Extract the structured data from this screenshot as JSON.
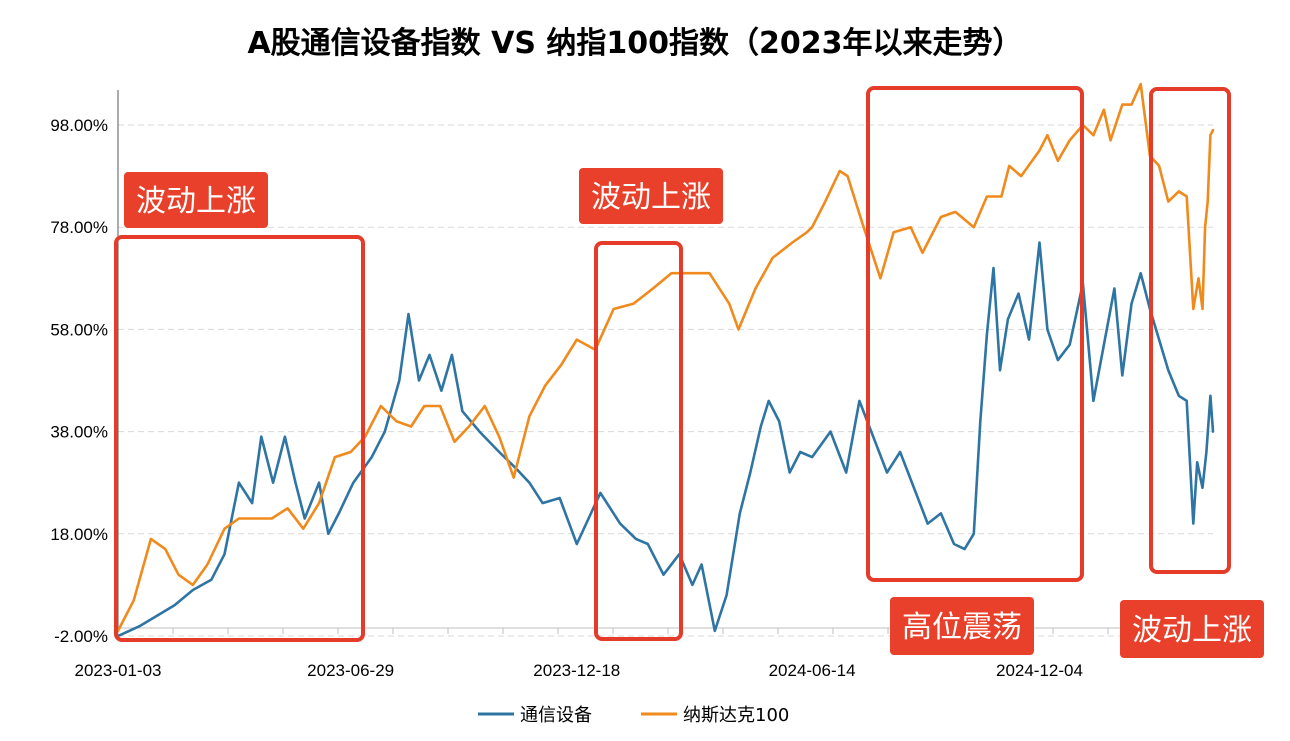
{
  "chart_data": {
    "type": "line",
    "title": "A股通信设备指数 VS 纳指100指数（2023年以来走势）",
    "x_tick_labels": [
      "2023-01-03",
      "2023-06-29",
      "2023-12-18",
      "2024-06-14",
      "2024-12-04"
    ],
    "y_tick_labels": [
      "-2.00%",
      "18.00%",
      "38.00%",
      "58.00%",
      "78.00%",
      "98.00%"
    ],
    "y_ticks": [
      -2,
      18,
      38,
      58,
      78,
      98
    ],
    "ylim": [
      -2,
      104
    ],
    "xlim": [
      "2023-01-03",
      "2025-04-15"
    ],
    "grid": "horizontal dashed",
    "legend_position": "bottom",
    "series": [
      {
        "name": "通信设备",
        "color": "#2e75a3",
        "points": [
          [
            "2023-01-03",
            -2
          ],
          [
            "2023-01-20",
            0
          ],
          [
            "2023-02-15",
            4
          ],
          [
            "2023-03-01",
            7
          ],
          [
            "2023-03-15",
            9
          ],
          [
            "2023-03-25",
            14
          ],
          [
            "2023-04-05",
            28
          ],
          [
            "2023-04-15",
            24
          ],
          [
            "2023-04-22",
            37
          ],
          [
            "2023-05-01",
            28
          ],
          [
            "2023-05-10",
            37
          ],
          [
            "2023-05-18",
            28
          ],
          [
            "2023-05-25",
            21
          ],
          [
            "2023-06-05",
            28
          ],
          [
            "2023-06-12",
            18
          ],
          [
            "2023-06-20",
            22
          ],
          [
            "2023-07-01",
            28
          ],
          [
            "2023-07-15",
            33
          ],
          [
            "2023-07-25",
            38
          ],
          [
            "2023-08-05",
            48
          ],
          [
            "2023-08-12",
            61
          ],
          [
            "2023-08-20",
            48
          ],
          [
            "2023-08-28",
            53
          ],
          [
            "2023-09-06",
            46
          ],
          [
            "2023-09-14",
            53
          ],
          [
            "2023-09-22",
            42
          ],
          [
            "2023-10-05",
            38
          ],
          [
            "2023-10-20",
            34
          ],
          [
            "2023-11-01",
            31
          ],
          [
            "2023-11-12",
            28
          ],
          [
            "2023-11-22",
            24
          ],
          [
            "2023-12-05",
            25
          ],
          [
            "2023-12-18",
            16
          ],
          [
            "2024-01-05",
            26
          ],
          [
            "2024-01-20",
            20
          ],
          [
            "2024-02-01",
            17
          ],
          [
            "2024-02-10",
            16
          ],
          [
            "2024-02-22",
            10
          ],
          [
            "2024-03-05",
            14
          ],
          [
            "2024-03-15",
            8
          ],
          [
            "2024-03-22",
            12
          ],
          [
            "2024-04-01",
            -1
          ],
          [
            "2024-04-10",
            6
          ],
          [
            "2024-04-20",
            22
          ],
          [
            "2024-04-28",
            30
          ],
          [
            "2024-05-06",
            39
          ],
          [
            "2024-05-12",
            44
          ],
          [
            "2024-05-20",
            40
          ],
          [
            "2024-05-28",
            30
          ],
          [
            "2024-06-05",
            34
          ],
          [
            "2024-06-14",
            33
          ],
          [
            "2024-06-28",
            38
          ],
          [
            "2024-07-10",
            30
          ],
          [
            "2024-07-20",
            44
          ],
          [
            "2024-08-01",
            36
          ],
          [
            "2024-08-10",
            30
          ],
          [
            "2024-08-20",
            34
          ],
          [
            "2024-09-01",
            26
          ],
          [
            "2024-09-10",
            20
          ],
          [
            "2024-09-20",
            22
          ],
          [
            "2024-09-30",
            16
          ],
          [
            "2024-10-08",
            15
          ],
          [
            "2024-10-15",
            18
          ],
          [
            "2024-10-20",
            40
          ],
          [
            "2024-10-25",
            57
          ],
          [
            "2024-10-30",
            70
          ],
          [
            "2024-11-04",
            50
          ],
          [
            "2024-11-10",
            60
          ],
          [
            "2024-11-18",
            65
          ],
          [
            "2024-11-26",
            56
          ],
          [
            "2024-12-04",
            75
          ],
          [
            "2024-12-10",
            58
          ],
          [
            "2024-12-18",
            52
          ],
          [
            "2024-12-27",
            55
          ],
          [
            "2025-01-06",
            67
          ],
          [
            "2025-01-14",
            44
          ],
          [
            "2025-01-22",
            55
          ],
          [
            "2025-01-30",
            66
          ],
          [
            "2025-02-05",
            49
          ],
          [
            "2025-02-12",
            63
          ],
          [
            "2025-02-19",
            69
          ],
          [
            "2025-02-26",
            62
          ],
          [
            "2025-03-05",
            56
          ],
          [
            "2025-03-12",
            50
          ],
          [
            "2025-03-20",
            45
          ],
          [
            "2025-03-26",
            44
          ],
          [
            "2025-03-31",
            20
          ],
          [
            "2025-04-03",
            32
          ],
          [
            "2025-04-07",
            27
          ],
          [
            "2025-04-10",
            34
          ],
          [
            "2025-04-13",
            45
          ],
          [
            "2025-04-15",
            38
          ]
        ]
      },
      {
        "name": "纳斯达克100",
        "color": "#f08a1c",
        "points": [
          [
            "2023-01-03",
            -1
          ],
          [
            "2023-01-15",
            5
          ],
          [
            "2023-01-28",
            17
          ],
          [
            "2023-02-08",
            15
          ],
          [
            "2023-02-18",
            10
          ],
          [
            "2023-03-01",
            8
          ],
          [
            "2023-03-12",
            12
          ],
          [
            "2023-03-25",
            19
          ],
          [
            "2023-04-05",
            21
          ],
          [
            "2023-04-18",
            21
          ],
          [
            "2023-04-30",
            21
          ],
          [
            "2023-05-12",
            23
          ],
          [
            "2023-05-24",
            19
          ],
          [
            "2023-06-05",
            24
          ],
          [
            "2023-06-17",
            33
          ],
          [
            "2023-06-29",
            34
          ],
          [
            "2023-07-10",
            37
          ],
          [
            "2023-07-22",
            43
          ],
          [
            "2023-08-03",
            40
          ],
          [
            "2023-08-14",
            39
          ],
          [
            "2023-08-24",
            43
          ],
          [
            "2023-09-05",
            43
          ],
          [
            "2023-09-16",
            36
          ],
          [
            "2023-09-27",
            39
          ],
          [
            "2023-10-09",
            43
          ],
          [
            "2023-10-20",
            37
          ],
          [
            "2023-10-31",
            29
          ],
          [
            "2023-11-12",
            41
          ],
          [
            "2023-11-24",
            47
          ],
          [
            "2023-12-06",
            51
          ],
          [
            "2023-12-18",
            56
          ],
          [
            "2024-01-01",
            54
          ],
          [
            "2024-01-15",
            62
          ],
          [
            "2024-01-30",
            63
          ],
          [
            "2024-02-14",
            66
          ],
          [
            "2024-02-28",
            69
          ],
          [
            "2024-03-14",
            69
          ],
          [
            "2024-03-28",
            69
          ],
          [
            "2024-04-12",
            63
          ],
          [
            "2024-04-19",
            58
          ],
          [
            "2024-05-02",
            66
          ],
          [
            "2024-05-15",
            72
          ],
          [
            "2024-05-30",
            75
          ],
          [
            "2024-06-10",
            77
          ],
          [
            "2024-06-14",
            78
          ],
          [
            "2024-06-24",
            83
          ],
          [
            "2024-07-05",
            89
          ],
          [
            "2024-07-11",
            88
          ],
          [
            "2024-07-22",
            79
          ],
          [
            "2024-08-05",
            68
          ],
          [
            "2024-08-15",
            77
          ],
          [
            "2024-08-28",
            78
          ],
          [
            "2024-09-06",
            73
          ],
          [
            "2024-09-20",
            80
          ],
          [
            "2024-10-01",
            81
          ],
          [
            "2024-10-15",
            78
          ],
          [
            "2024-10-25",
            84
          ],
          [
            "2024-11-05",
            84
          ],
          [
            "2024-11-11",
            90
          ],
          [
            "2024-11-20",
            88
          ],
          [
            "2024-12-04",
            93
          ],
          [
            "2024-12-10",
            96
          ],
          [
            "2024-12-18",
            91
          ],
          [
            "2024-12-27",
            95
          ],
          [
            "2025-01-06",
            98
          ],
          [
            "2025-01-14",
            96
          ],
          [
            "2025-01-22",
            101
          ],
          [
            "2025-01-27",
            95
          ],
          [
            "2025-02-05",
            102
          ],
          [
            "2025-02-12",
            102
          ],
          [
            "2025-02-19",
            106
          ],
          [
            "2025-02-26",
            92
          ],
          [
            "2025-03-05",
            90
          ],
          [
            "2025-03-12",
            83
          ],
          [
            "2025-03-20",
            85
          ],
          [
            "2025-03-26",
            84
          ],
          [
            "2025-03-31",
            62
          ],
          [
            "2025-04-04",
            68
          ],
          [
            "2025-04-07",
            62
          ],
          [
            "2025-04-09",
            78
          ],
          [
            "2025-04-11",
            83
          ],
          [
            "2025-04-13",
            96
          ],
          [
            "2025-04-15",
            97
          ]
        ]
      }
    ],
    "annotations": [
      {
        "label": "波动上涨",
        "x_range": [
          "2023-01-03",
          "2023-09-22"
        ],
        "y_range": [
          -2,
          77
        ]
      },
      {
        "label": "波动上涨",
        "x_range": [
          "2024-03-25",
          "2024-05-30"
        ],
        "y_range": [
          -2,
          76
        ]
      },
      {
        "label": "高位震荡",
        "x_range": [
          "2024-10-03",
          "2025-02-28"
        ],
        "y_range": [
          9,
          106
        ]
      },
      {
        "label": "波动上涨",
        "x_range": [
          "2025-03-30",
          "2025-04-15"
        ],
        "y_range": [
          10,
          105
        ]
      }
    ]
  }
}
